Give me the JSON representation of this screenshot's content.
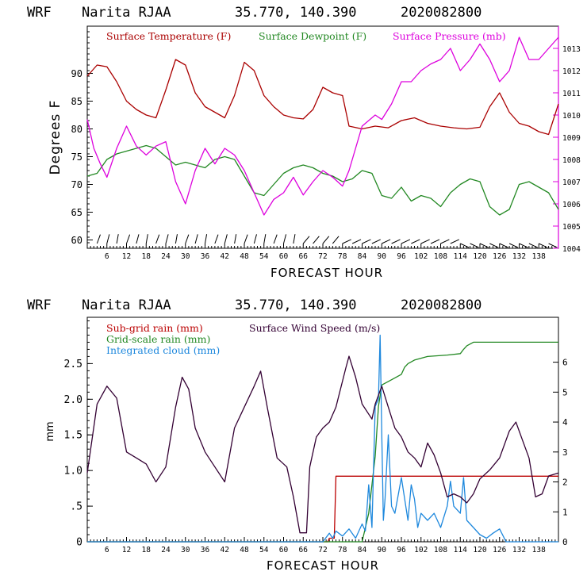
{
  "top_panel": {
    "header": {
      "model": "WRF",
      "station": "Narita RJAA",
      "coords": "35.770, 140.390",
      "run": "2020082800"
    },
    "xlabel": "FORECAST HOUR",
    "ylabel_left": "Degrees F",
    "legend": {
      "temperature": "Surface Temperature (F)",
      "dewpoint": "Surface Dewpoint (F)",
      "pressure": "Surface Pressure (mb)"
    }
  },
  "bottom_panel": {
    "header": {
      "model": "WRF",
      "station": "Narita RJAA",
      "coords": "35.770, 140.390",
      "run": "2020082800"
    },
    "xlabel": "FORECAST HOUR",
    "ylabel_left": "mm",
    "legend": {
      "subgrid": "Sub-grid rain (mm)",
      "gridscale": "Grid-scale rain (mm)",
      "cloud": "Integrated cloud (mm)",
      "wind": "Surface Wind Speed (m/s)"
    }
  },
  "colors": {
    "temperature": "#aa0000",
    "dewpoint": "#228822",
    "pressure": "#dd00dd",
    "subgrid": "#bb0000",
    "gridscale": "#228822",
    "cloud": "#1e88dd",
    "wind": "#330033",
    "axis": "#000000"
  },
  "chart_data": [
    {
      "type": "line",
      "title": "WRF Narita RJAA 35.770, 140.390 2020082800",
      "xlabel": "FORECAST HOUR",
      "ylabel": "Degrees F",
      "y2label": "Surface Pressure (mb)",
      "xlim": [
        0,
        144
      ],
      "ylim": [
        58.5,
        98.5
      ],
      "y2lim": [
        1004,
        1014
      ],
      "x_ticks": [
        6,
        12,
        18,
        24,
        30,
        36,
        42,
        48,
        54,
        60,
        66,
        72,
        78,
        84,
        90,
        96,
        102,
        108,
        114,
        120,
        126,
        132,
        138
      ],
      "y_ticks": [
        60,
        65,
        70,
        75,
        80,
        85,
        90
      ],
      "y2_ticks": [
        1004,
        1005,
        1006,
        1007,
        1008,
        1009,
        1010,
        1011,
        1012,
        1013
      ],
      "series": [
        {
          "name": "Surface Temperature (F)",
          "axis": "left",
          "x": [
            0,
            3,
            6,
            9,
            12,
            15,
            18,
            21,
            24,
            27,
            30,
            33,
            36,
            39,
            42,
            45,
            48,
            51,
            54,
            57,
            60,
            63,
            66,
            69,
            72,
            75,
            78,
            80,
            84,
            88,
            92,
            96,
            100,
            104,
            108,
            112,
            116,
            120,
            123,
            126,
            129,
            132,
            135,
            138,
            141,
            144
          ],
          "y": [
            89.5,
            91.5,
            91.2,
            88.5,
            85.0,
            83.5,
            82.5,
            82.0,
            87.0,
            92.5,
            91.5,
            86.5,
            84.0,
            83.0,
            82.0,
            86.0,
            92.0,
            90.5,
            86.0,
            84.0,
            82.5,
            82.0,
            81.8,
            83.5,
            87.5,
            86.5,
            86.0,
            80.5,
            80.0,
            80.5,
            80.2,
            81.5,
            82.0,
            81.0,
            80.5,
            80.2,
            80.0,
            80.3,
            84.0,
            86.5,
            83.0,
            81.0,
            80.5,
            79.5,
            79.0,
            84.5
          ]
        },
        {
          "name": "Surface Dewpoint (F)",
          "axis": "left",
          "x": [
            0,
            3,
            6,
            9,
            12,
            15,
            18,
            21,
            24,
            27,
            30,
            33,
            36,
            39,
            42,
            45,
            48,
            51,
            54,
            57,
            60,
            63,
            66,
            69,
            72,
            75,
            78,
            81,
            84,
            87,
            90,
            93,
            96,
            99,
            102,
            105,
            108,
            111,
            114,
            117,
            120,
            123,
            126,
            129,
            132,
            135,
            138,
            141,
            144
          ],
          "y": [
            71.5,
            72.0,
            74.5,
            75.5,
            76.0,
            76.5,
            77.0,
            76.5,
            75.0,
            73.5,
            74.0,
            73.5,
            73.0,
            74.5,
            75.0,
            74.5,
            71.5,
            68.5,
            68.0,
            70.0,
            72.0,
            73.0,
            73.5,
            73.0,
            72.0,
            71.5,
            70.5,
            71.0,
            72.5,
            72.0,
            68.0,
            67.5,
            69.5,
            67.0,
            68.0,
            67.5,
            66.0,
            68.5,
            70.0,
            71.0,
            70.5,
            66.0,
            64.5,
            65.5,
            70.0,
            70.5,
            69.5,
            68.5,
            65.5
          ]
        },
        {
          "name": "Surface Pressure (mb)",
          "axis": "right",
          "x": [
            0,
            2,
            4,
            6,
            9,
            12,
            15,
            18,
            21,
            24,
            27,
            30,
            33,
            36,
            39,
            42,
            45,
            48,
            51,
            54,
            57,
            60,
            63,
            66,
            69,
            72,
            75,
            78,
            80,
            84,
            88,
            90,
            93,
            96,
            99,
            102,
            105,
            108,
            111,
            114,
            117,
            120,
            123,
            126,
            129,
            132,
            135,
            138,
            141,
            144
          ],
          "y": [
            1009.8,
            1008.5,
            1007.8,
            1007.2,
            1008.5,
            1009.5,
            1008.6,
            1008.2,
            1008.6,
            1008.8,
            1007.0,
            1006.0,
            1007.5,
            1008.5,
            1007.8,
            1008.5,
            1008.2,
            1007.5,
            1006.5,
            1005.5,
            1006.2,
            1006.5,
            1007.2,
            1006.4,
            1007.0,
            1007.5,
            1007.2,
            1006.8,
            1007.5,
            1009.5,
            1010.0,
            1009.8,
            1010.5,
            1011.5,
            1011.5,
            1012.0,
            1012.3,
            1012.5,
            1013.0,
            1012.0,
            1012.5,
            1013.2,
            1012.5,
            1011.5,
            1012.0,
            1013.5,
            1012.5,
            1012.5,
            1013.0,
            1013.5
          ]
        }
      ]
    },
    {
      "type": "line",
      "title": "WRF Narita RJAA 35.770, 140.390 2020082800",
      "xlabel": "FORECAST HOUR",
      "ylabel": "mm",
      "y2label": "Surface Wind Speed (m/s)",
      "xlim": [
        0,
        144
      ],
      "ylim": [
        0,
        3.15
      ],
      "y2lim": [
        0,
        7.5
      ],
      "x_ticks": [
        6,
        12,
        18,
        24,
        30,
        36,
        42,
        48,
        54,
        60,
        66,
        72,
        78,
        84,
        90,
        96,
        102,
        108,
        114,
        120,
        126,
        132,
        138
      ],
      "y_ticks": [
        0,
        0.5,
        1.0,
        1.5,
        2.0,
        2.5
      ],
      "y_tick_labels": [
        "0",
        ".5",
        "1.0",
        "1.5",
        "2.0",
        "2.5"
      ],
      "y2_ticks": [
        0,
        1,
        2,
        3,
        4,
        5,
        6
      ],
      "series": [
        {
          "name": "Sub-grid rain (mm)",
          "axis": "left",
          "x": [
            0,
            73.5,
            74,
            75.5,
            76,
            144
          ],
          "y": [
            0,
            0,
            0.05,
            0.05,
            0.92,
            0.92
          ]
        },
        {
          "name": "Grid-scale rain (mm)",
          "axis": "left",
          "x": [
            0,
            84,
            86,
            88,
            89,
            90,
            92,
            94,
            96,
            97,
            98,
            100,
            104,
            110,
            114,
            115,
            116,
            118,
            140,
            144
          ],
          "y": [
            0,
            0,
            0.4,
            1.2,
            1.9,
            2.2,
            2.25,
            2.3,
            2.35,
            2.45,
            2.5,
            2.55,
            2.6,
            2.62,
            2.64,
            2.7,
            2.75,
            2.8,
            2.8,
            2.8
          ]
        },
        {
          "name": "Integrated cloud (mm)",
          "axis": "left",
          "x": [
            0,
            72,
            74,
            75,
            76,
            78,
            80,
            82,
            84,
            85,
            86,
            87,
            88,
            89,
            89.5,
            90,
            90.5,
            91,
            92,
            93,
            94,
            96,
            98,
            99,
            100,
            101,
            102,
            104,
            106,
            108,
            110,
            111,
            112,
            114,
            115,
            116,
            118,
            120,
            122,
            124,
            126,
            128,
            144
          ],
          "y": [
            0,
            0,
            0.12,
            0.05,
            0.15,
            0.08,
            0.18,
            0.05,
            0.25,
            0.15,
            0.8,
            0.2,
            1.9,
            2.0,
            2.9,
            1.5,
            0.3,
            0.6,
            1.5,
            0.5,
            0.4,
            0.9,
            0.3,
            0.8,
            0.6,
            0.2,
            0.4,
            0.3,
            0.4,
            0.2,
            0.5,
            0.85,
            0.5,
            0.4,
            0.9,
            0.3,
            0.2,
            0.1,
            0.05,
            0.12,
            0.18,
            0,
            0
          ]
        },
        {
          "name": "Surface Wind Speed (m/s)",
          "axis": "right",
          "x": [
            0,
            3,
            6,
            9,
            12,
            15,
            18,
            21,
            24,
            27,
            29,
            31,
            33,
            36,
            39,
            42,
            45,
            48,
            51,
            53,
            55,
            58,
            61,
            63,
            65,
            67,
            68,
            70,
            72,
            74,
            76,
            79,
            80,
            82,
            84,
            87,
            88,
            90,
            92,
            94,
            96,
            98,
            100,
            102,
            104,
            106,
            108,
            110,
            112,
            114,
            116,
            118,
            120,
            123,
            126,
            129,
            131,
            133,
            135,
            137,
            139,
            141,
            144
          ],
          "y": [
            2.3,
            4.6,
            5.2,
            4.8,
            3.0,
            2.8,
            2.6,
            2.0,
            2.5,
            4.5,
            5.5,
            5.1,
            3.8,
            3.0,
            2.5,
            2.0,
            3.8,
            4.5,
            5.2,
            5.7,
            4.5,
            2.8,
            2.5,
            1.5,
            0.3,
            0.3,
            2.5,
            3.5,
            3.8,
            4.0,
            4.5,
            5.8,
            6.2,
            5.5,
            4.6,
            4.1,
            4.6,
            5.2,
            4.5,
            3.8,
            3.5,
            3.0,
            2.8,
            2.5,
            3.3,
            2.9,
            2.3,
            1.5,
            1.6,
            1.5,
            1.3,
            1.6,
            2.1,
            2.4,
            2.8,
            3.7,
            4.0,
            3.4,
            2.8,
            1.5,
            1.6,
            2.2,
            2.3
          ]
        }
      ]
    }
  ]
}
